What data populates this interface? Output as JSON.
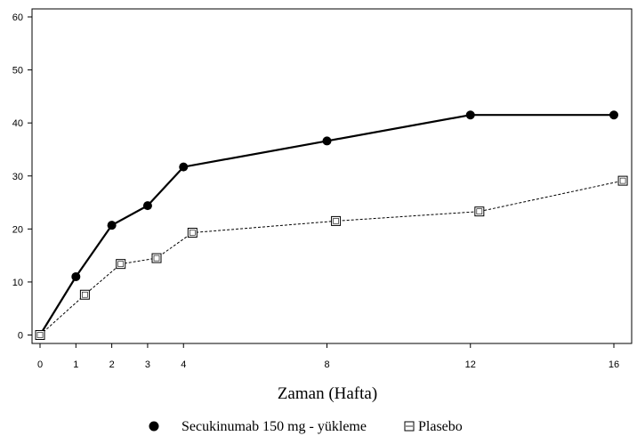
{
  "chart_data": {
    "type": "line",
    "xlabel": "Zaman (Hafta)",
    "ylabel": "",
    "x_ticks": [
      0,
      1,
      2,
      3,
      4,
      8,
      12,
      16
    ],
    "y_ticks": [
      0,
      10,
      20,
      30,
      40,
      50,
      60
    ],
    "xlim": [
      -0.3,
      16.5
    ],
    "ylim": [
      -1.5,
      61
    ],
    "grid": false,
    "legend_position": "bottom",
    "series": [
      {
        "name": "Secukinumab 150 mg - yükleme",
        "marker": "filled-circle",
        "line_style": "solid",
        "color": "#000000",
        "x": [
          0,
          1,
          2,
          3,
          4,
          8,
          12,
          16
        ],
        "y": [
          0,
          11,
          20.7,
          24.4,
          31.7,
          36.6,
          41.5,
          41.5
        ]
      },
      {
        "name": "Plasebo",
        "marker": "open-square",
        "line_style": "dashed",
        "color": "#000000",
        "x": [
          0,
          1.25,
          2.25,
          3.25,
          4.25,
          8.25,
          12.25,
          16.25
        ],
        "y": [
          0,
          7.6,
          13.4,
          14.5,
          19.3,
          21.5,
          23.3,
          29.1
        ]
      }
    ]
  }
}
